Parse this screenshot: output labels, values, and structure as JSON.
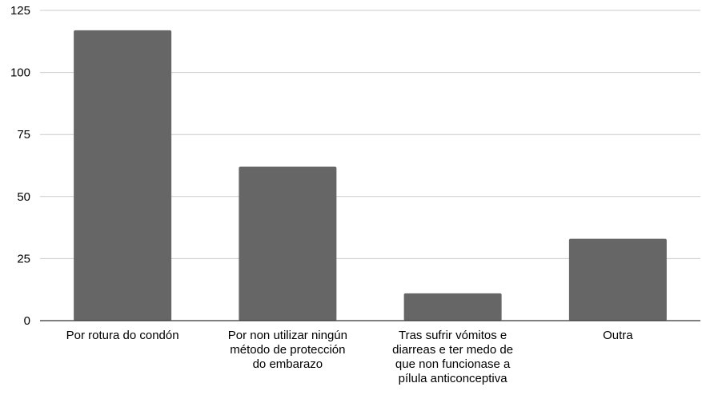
{
  "chart_data": {
    "type": "bar",
    "categories": [
      "Por rotura do condón",
      "Por non utilizar ningún método de protección do embarazo",
      "Tras sufrir vómitos e diarreas e ter medo de que non funcionase a pílula anticonceptiva",
      "Outra"
    ],
    "category_label_lines": [
      [
        "Por rotura do condón"
      ],
      [
        "Por non utilizar ningún",
        "método de protección",
        "do embarazo"
      ],
      [
        "Tras sufrir vómitos e",
        "diarreas e ter medo de",
        "que non funcionase a",
        "pílula anticonceptiva"
      ],
      [
        "Outra"
      ]
    ],
    "values": [
      117,
      62,
      11,
      33
    ],
    "y_ticks": [
      0,
      25,
      50,
      75,
      100,
      125
    ],
    "ylim": [
      0,
      125
    ],
    "title": "",
    "xlabel": "",
    "ylabel": "",
    "grid": true,
    "legend": "none",
    "colors": {
      "bar": "#666666",
      "gridline": "#cccccc",
      "axis": "#333333",
      "text": "#000000"
    }
  }
}
